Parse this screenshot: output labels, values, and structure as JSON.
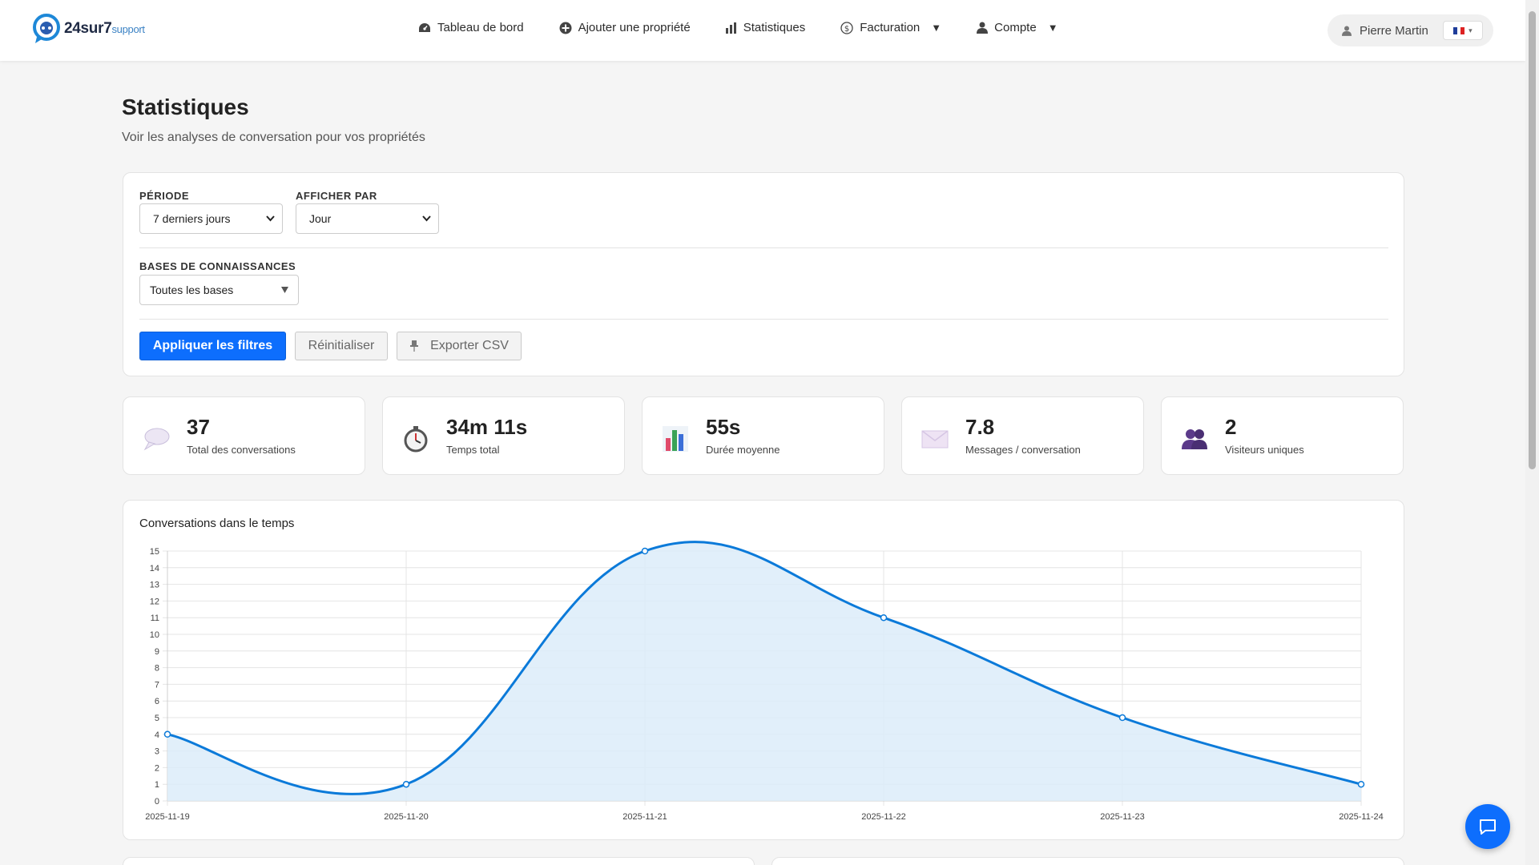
{
  "brand": {
    "name_bold": "24sur7",
    "name_light": "support"
  },
  "nav": {
    "items": [
      {
        "label": "Tableau de bord",
        "icon": "dashboard-icon"
      },
      {
        "label": "Ajouter une propriété",
        "icon": "plus-circle-icon"
      },
      {
        "label": "Statistiques",
        "icon": "bar-chart-icon"
      },
      {
        "label": "Facturation",
        "icon": "dollar-circle-icon",
        "dropdown": true
      },
      {
        "label": "Compte",
        "icon": "user-icon",
        "dropdown": true
      }
    ],
    "caret": "▼"
  },
  "user": {
    "name": "Pierre Martin",
    "lang_caret": "▾"
  },
  "page": {
    "title": "Statistiques",
    "subtitle": "Voir les analyses de conversation pour vos propriétés"
  },
  "filters": {
    "period_label": "PÉRIODE",
    "period_value": "7 derniers jours",
    "group_label": "AFFICHER PAR",
    "group_value": "Jour",
    "kb_label": "BASES DE CONNAISSANCES",
    "kb_value": "Toutes les bases",
    "apply": "Appliquer les filtres",
    "reset": "Réinitialiser",
    "export": "Exporter CSV"
  },
  "stats": [
    {
      "value": "37",
      "label": "Total des conversations",
      "icon": "speech-bubble-icon"
    },
    {
      "value": "34m 11s",
      "label": "Temps total",
      "icon": "stopwatch-icon"
    },
    {
      "value": "55s",
      "label": "Durée moyenne",
      "icon": "bar-chart-emoji-icon"
    },
    {
      "value": "7.8",
      "label": "Messages / conversation",
      "icon": "envelope-icon"
    },
    {
      "value": "2",
      "label": "Visiteurs uniques",
      "icon": "users-icon"
    }
  ],
  "chart_data": {
    "type": "area",
    "title": "Conversations dans le temps",
    "categories": [
      "2025-11-19",
      "2025-11-20",
      "2025-11-21",
      "2025-11-22",
      "2025-11-23",
      "2025-11-24"
    ],
    "values": [
      4,
      1,
      15,
      11,
      5,
      1
    ],
    "ylim": [
      0,
      15
    ],
    "yticks": [
      0,
      1,
      2,
      3,
      4,
      5,
      6,
      7,
      8,
      9,
      10,
      11,
      12,
      13,
      14,
      15
    ],
    "grid": true,
    "legend": "none",
    "color": "#0b7ad9",
    "fill": "#dcecf9"
  },
  "colors": {
    "primary": "#0d6efd",
    "background": "#f5f5f5"
  }
}
